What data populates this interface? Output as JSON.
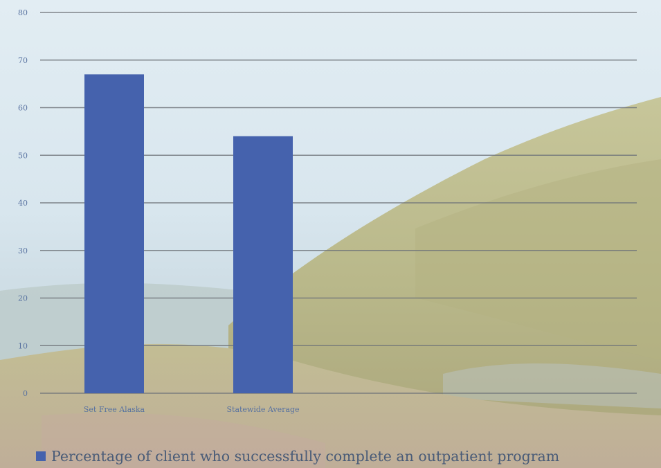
{
  "chart_data": {
    "type": "bar",
    "categories": [
      "Set Free Alaska",
      "Statewide Average"
    ],
    "series": [
      {
        "name": "Percentage of client who successfully complete an outpatient program",
        "values": [
          67,
          54
        ]
      }
    ],
    "ylim": [
      0,
      80
    ],
    "yticks": [
      0,
      10,
      20,
      30,
      40,
      50,
      60,
      70,
      80
    ],
    "grid": true,
    "legend_position": "bottom",
    "colors": {
      "bar": "#4562ad",
      "gridline": "#6e7379",
      "tick_text": "#5872a0",
      "legend_text": "#4a5c78"
    }
  }
}
